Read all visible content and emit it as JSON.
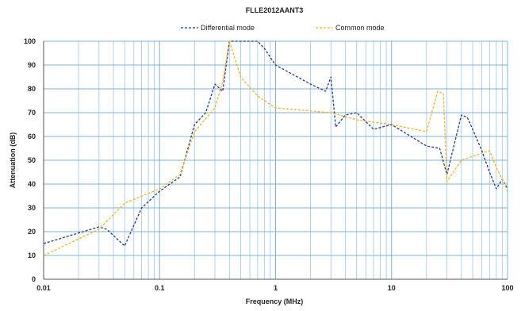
{
  "chart_data": {
    "type": "line",
    "title": "FLLE2012AANT3",
    "xlabel": "Frequency (MHz)",
    "ylabel": "Attenuation (dB)",
    "x_scale": "log",
    "xlim": [
      0.01,
      100
    ],
    "ylim": [
      0,
      100
    ],
    "grid": true,
    "legend_position": "top-center",
    "x_tick_labels": [
      "0.01",
      "0.1",
      "1",
      "10",
      "100"
    ],
    "y_tick_labels": [
      "0",
      "10",
      "20",
      "30",
      "40",
      "50",
      "60",
      "70",
      "80",
      "90",
      "100"
    ],
    "series": [
      {
        "name": "Differential mode",
        "color": "#1f3a8a",
        "dash": "dashed",
        "x": [
          0.01,
          0.03,
          0.035,
          0.05,
          0.07,
          0.1,
          0.15,
          0.2,
          0.25,
          0.3,
          0.35,
          0.4,
          0.5,
          0.7,
          0.8,
          1,
          2,
          2.7,
          3,
          3.3,
          4,
          5,
          7,
          10,
          20,
          26,
          30,
          40,
          45,
          50,
          60,
          70,
          80,
          90,
          100
        ],
        "y": [
          15,
          22,
          21,
          14,
          30,
          37,
          43,
          65,
          70,
          82,
          79,
          100,
          100,
          100,
          97,
          90,
          82,
          79,
          85,
          64,
          69,
          70,
          63,
          65,
          56,
          55,
          44,
          69,
          68,
          63,
          54,
          45,
          38,
          42,
          38
        ]
      },
      {
        "name": "Common mode",
        "color": "#f0b323",
        "dash": "dashed",
        "x": [
          0.01,
          0.03,
          0.05,
          0.1,
          0.15,
          0.2,
          0.3,
          0.35,
          0.4,
          0.5,
          0.7,
          1,
          3,
          5,
          10,
          20,
          25,
          28,
          30,
          40,
          60,
          70,
          80,
          90,
          100
        ],
        "y": [
          10,
          21,
          32,
          38,
          44,
          62,
          72,
          83,
          100,
          85,
          77,
          72,
          70,
          67,
          65,
          62,
          79,
          78,
          41,
          50,
          53,
          54,
          47,
          42,
          37
        ]
      }
    ]
  }
}
